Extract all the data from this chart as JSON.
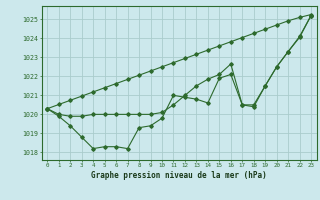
{
  "title": "Graphe pression niveau de la mer (hPa)",
  "background_color": "#cce8ec",
  "grid_color": "#aacccc",
  "line_color": "#2d6a2d",
  "hours": [
    0,
    1,
    2,
    3,
    4,
    5,
    6,
    7,
    8,
    9,
    10,
    11,
    12,
    13,
    14,
    15,
    16,
    17,
    18,
    19,
    20,
    21,
    22,
    23
  ],
  "line1": [
    1020.3,
    1019.9,
    1019.4,
    1018.8,
    1018.2,
    1018.3,
    1018.3,
    1018.2,
    1019.3,
    1019.4,
    1019.8,
    1021.0,
    1020.9,
    1020.8,
    1020.6,
    1021.9,
    1022.1,
    1020.5,
    1020.5,
    1021.5,
    1022.5,
    1023.3,
    1024.1,
    1025.2
  ],
  "line2": [
    1020.3,
    1020.52,
    1020.74,
    1020.96,
    1021.18,
    1021.4,
    1021.62,
    1021.84,
    1022.06,
    1022.28,
    1022.5,
    1022.72,
    1022.94,
    1023.16,
    1023.38,
    1023.6,
    1023.82,
    1024.04,
    1024.26,
    1024.48,
    1024.7,
    1024.92,
    1025.1,
    1025.25
  ],
  "line3": [
    1020.3,
    1020.0,
    1019.9,
    1019.9,
    1020.0,
    1020.0,
    1020.0,
    1020.0,
    1020.0,
    1020.0,
    1020.1,
    1020.5,
    1021.0,
    1021.5,
    1021.85,
    1022.1,
    1022.65,
    1020.5,
    1020.4,
    1021.5,
    1022.5,
    1023.3,
    1024.05,
    1025.2
  ],
  "ylim_min": 1017.6,
  "ylim_max": 1025.7,
  "yticks": [
    1018,
    1019,
    1020,
    1021,
    1022,
    1023,
    1024,
    1025
  ]
}
